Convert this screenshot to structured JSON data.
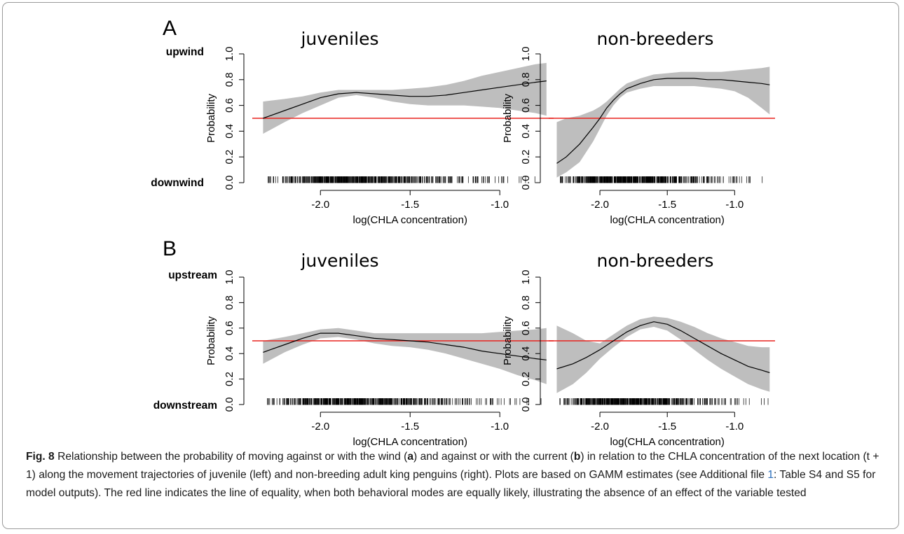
{
  "chart_data": [
    {
      "type": "line",
      "panel": "A",
      "title": "juveniles",
      "xlabel": "log(CHLA concentration)",
      "ylabel": "Probability",
      "top_label": "upwind",
      "bottom_label": "downwind",
      "xlim": [
        -2.38,
        -0.7
      ],
      "ylim": [
        0,
        1
      ],
      "xticks": [
        "-2.0",
        "-1.5",
        "-1.0"
      ],
      "xtick_values": [
        -2.0,
        -1.5,
        -1.0
      ],
      "yticks": [
        "0.0",
        "0.2",
        "0.4",
        "0.6",
        "0.8",
        "1.0"
      ],
      "ytick_values": [
        0,
        0.2,
        0.4,
        0.6,
        0.8,
        1.0
      ],
      "reference_line": 0.5,
      "reference_color": "#e8231f",
      "band_color": "#bebebe",
      "x": [
        -2.32,
        -2.2,
        -2.1,
        -2.0,
        -1.9,
        -1.8,
        -1.7,
        -1.6,
        -1.5,
        -1.4,
        -1.3,
        -1.2,
        -1.1,
        -1.0,
        -0.9,
        -0.8,
        -0.74
      ],
      "y": [
        0.5,
        0.56,
        0.61,
        0.66,
        0.69,
        0.7,
        0.69,
        0.68,
        0.67,
        0.67,
        0.68,
        0.7,
        0.72,
        0.74,
        0.76,
        0.78,
        0.79
      ],
      "lower": [
        0.38,
        0.47,
        0.54,
        0.6,
        0.66,
        0.68,
        0.66,
        0.63,
        0.61,
        0.6,
        0.6,
        0.6,
        0.59,
        0.58,
        0.56,
        0.54,
        0.52
      ],
      "upper": [
        0.63,
        0.65,
        0.67,
        0.7,
        0.72,
        0.72,
        0.72,
        0.72,
        0.73,
        0.74,
        0.76,
        0.79,
        0.83,
        0.86,
        0.89,
        0.92,
        0.93
      ],
      "rug_density": [
        [
          -2.3,
          0.1
        ],
        [
          -2.2,
          0.3
        ],
        [
          -2.1,
          0.6
        ],
        [
          -2.0,
          0.9
        ],
        [
          -1.9,
          1.0
        ],
        [
          -1.8,
          1.0
        ],
        [
          -1.7,
          0.95
        ],
        [
          -1.6,
          0.8
        ],
        [
          -1.5,
          0.6
        ],
        [
          -1.4,
          0.4
        ],
        [
          -1.3,
          0.3
        ],
        [
          -1.2,
          0.2
        ],
        [
          -1.1,
          0.15
        ],
        [
          -1.0,
          0.1
        ],
        [
          -0.9,
          0.07
        ],
        [
          -0.75,
          0.05
        ]
      ]
    },
    {
      "type": "line",
      "panel": "",
      "title": "non-breeders",
      "xlabel": "log(CHLA concentration)",
      "ylabel": "Probability",
      "top_label": "",
      "bottom_label": "",
      "xlim": [
        -2.38,
        -0.7
      ],
      "ylim": [
        0,
        1
      ],
      "xticks": [
        "-2.0",
        "-1.5",
        "-1.0"
      ],
      "xtick_values": [
        -2.0,
        -1.5,
        -1.0
      ],
      "yticks": [
        "0.0",
        "0.2",
        "0.4",
        "0.6",
        "0.8",
        "1.0"
      ],
      "ytick_values": [
        0,
        0.2,
        0.4,
        0.6,
        0.8,
        1.0
      ],
      "reference_line": 0.5,
      "reference_color": "#e8231f",
      "band_color": "#bebebe",
      "x": [
        -2.32,
        -2.25,
        -2.15,
        -2.05,
        -2.0,
        -1.95,
        -1.9,
        -1.85,
        -1.8,
        -1.7,
        -1.6,
        -1.5,
        -1.4,
        -1.3,
        -1.2,
        -1.1,
        -1.0,
        -0.9,
        -0.8,
        -0.74
      ],
      "y": [
        0.15,
        0.2,
        0.3,
        0.43,
        0.5,
        0.58,
        0.64,
        0.69,
        0.73,
        0.77,
        0.8,
        0.81,
        0.81,
        0.81,
        0.8,
        0.8,
        0.79,
        0.78,
        0.77,
        0.76
      ],
      "lower": [
        0.04,
        0.08,
        0.16,
        0.32,
        0.42,
        0.52,
        0.6,
        0.66,
        0.7,
        0.73,
        0.75,
        0.75,
        0.75,
        0.75,
        0.74,
        0.73,
        0.71,
        0.66,
        0.58,
        0.53
      ],
      "upper": [
        0.47,
        0.5,
        0.52,
        0.56,
        0.59,
        0.63,
        0.68,
        0.73,
        0.77,
        0.81,
        0.84,
        0.85,
        0.86,
        0.86,
        0.86,
        0.86,
        0.87,
        0.88,
        0.89,
        0.9
      ],
      "rug_density": [
        [
          -2.3,
          0.1
        ],
        [
          -2.2,
          0.3
        ],
        [
          -2.1,
          0.6
        ],
        [
          -2.0,
          0.9
        ],
        [
          -1.9,
          1.0
        ],
        [
          -1.8,
          1.0
        ],
        [
          -1.7,
          0.95
        ],
        [
          -1.6,
          0.8
        ],
        [
          -1.5,
          0.6
        ],
        [
          -1.4,
          0.4
        ],
        [
          -1.3,
          0.3
        ],
        [
          -1.2,
          0.2
        ],
        [
          -1.1,
          0.15
        ],
        [
          -1.0,
          0.1
        ],
        [
          -0.9,
          0.07
        ],
        [
          -0.75,
          0.05
        ]
      ]
    },
    {
      "type": "line",
      "panel": "B",
      "title": "juveniles",
      "xlabel": "log(CHLA concentration)",
      "ylabel": "Probability",
      "top_label": "upstream",
      "bottom_label": "downstream",
      "xlim": [
        -2.38,
        -0.7
      ],
      "ylim": [
        0,
        1
      ],
      "xticks": [
        "-2.0",
        "-1.5",
        "-1.0"
      ],
      "xtick_values": [
        -2.0,
        -1.5,
        -1.0
      ],
      "yticks": [
        "0.0",
        "0.2",
        "0.4",
        "0.6",
        "0.8",
        "1.0"
      ],
      "ytick_values": [
        0,
        0.2,
        0.4,
        0.6,
        0.8,
        1.0
      ],
      "reference_line": 0.5,
      "reference_color": "#e8231f",
      "band_color": "#bebebe",
      "x": [
        -2.32,
        -2.2,
        -2.1,
        -2.0,
        -1.9,
        -1.8,
        -1.7,
        -1.6,
        -1.5,
        -1.4,
        -1.3,
        -1.2,
        -1.1,
        -1.0,
        -0.9,
        -0.8,
        -0.74
      ],
      "y": [
        0.41,
        0.47,
        0.52,
        0.56,
        0.56,
        0.54,
        0.52,
        0.51,
        0.5,
        0.49,
        0.47,
        0.45,
        0.42,
        0.4,
        0.38,
        0.36,
        0.35
      ],
      "lower": [
        0.32,
        0.41,
        0.47,
        0.52,
        0.53,
        0.51,
        0.48,
        0.46,
        0.45,
        0.43,
        0.4,
        0.36,
        0.32,
        0.28,
        0.23,
        0.19,
        0.16
      ],
      "upper": [
        0.5,
        0.53,
        0.56,
        0.59,
        0.6,
        0.58,
        0.56,
        0.56,
        0.56,
        0.56,
        0.56,
        0.56,
        0.56,
        0.57,
        0.58,
        0.59,
        0.6
      ],
      "rug_density": [
        [
          -2.3,
          0.1
        ],
        [
          -2.2,
          0.3
        ],
        [
          -2.1,
          0.6
        ],
        [
          -2.0,
          0.9
        ],
        [
          -1.9,
          1.0
        ],
        [
          -1.8,
          1.0
        ],
        [
          -1.7,
          0.95
        ],
        [
          -1.6,
          0.8
        ],
        [
          -1.5,
          0.6
        ],
        [
          -1.4,
          0.4
        ],
        [
          -1.3,
          0.3
        ],
        [
          -1.2,
          0.2
        ],
        [
          -1.1,
          0.15
        ],
        [
          -1.0,
          0.1
        ],
        [
          -0.9,
          0.07
        ],
        [
          -0.75,
          0.05
        ]
      ]
    },
    {
      "type": "line",
      "panel": "",
      "title": "non-breeders",
      "xlabel": "log(CHLA concentration)",
      "ylabel": "Probability",
      "top_label": "",
      "bottom_label": "",
      "xlim": [
        -2.38,
        -0.7
      ],
      "ylim": [
        0,
        1
      ],
      "xticks": [
        "-2.0",
        "-1.5",
        "-1.0"
      ],
      "xtick_values": [
        -2.0,
        -1.5,
        -1.0
      ],
      "yticks": [
        "0.0",
        "0.2",
        "0.4",
        "0.6",
        "0.8",
        "1.0"
      ],
      "ytick_values": [
        0,
        0.2,
        0.4,
        0.6,
        0.8,
        1.0
      ],
      "reference_line": 0.5,
      "reference_color": "#e8231f",
      "band_color": "#bebebe",
      "x": [
        -2.32,
        -2.2,
        -2.1,
        -2.0,
        -1.9,
        -1.8,
        -1.7,
        -1.6,
        -1.5,
        -1.4,
        -1.3,
        -1.2,
        -1.1,
        -1.0,
        -0.9,
        -0.8,
        -0.74
      ],
      "y": [
        0.28,
        0.32,
        0.37,
        0.43,
        0.5,
        0.57,
        0.62,
        0.65,
        0.63,
        0.58,
        0.52,
        0.46,
        0.4,
        0.35,
        0.3,
        0.27,
        0.25
      ],
      "lower": [
        0.09,
        0.16,
        0.25,
        0.36,
        0.45,
        0.53,
        0.59,
        0.61,
        0.58,
        0.51,
        0.43,
        0.35,
        0.28,
        0.22,
        0.16,
        0.12,
        0.1
      ],
      "upper": [
        0.62,
        0.56,
        0.5,
        0.48,
        0.55,
        0.62,
        0.67,
        0.69,
        0.68,
        0.65,
        0.61,
        0.56,
        0.52,
        0.49,
        0.46,
        0.45,
        0.45
      ],
      "rug_density": [
        [
          -2.3,
          0.1
        ],
        [
          -2.2,
          0.3
        ],
        [
          -2.1,
          0.6
        ],
        [
          -2.0,
          0.9
        ],
        [
          -1.9,
          1.0
        ],
        [
          -1.8,
          1.0
        ],
        [
          -1.7,
          0.95
        ],
        [
          -1.6,
          0.8
        ],
        [
          -1.5,
          0.6
        ],
        [
          -1.4,
          0.4
        ],
        [
          -1.3,
          0.3
        ],
        [
          -1.2,
          0.2
        ],
        [
          -1.1,
          0.15
        ],
        [
          -1.0,
          0.1
        ],
        [
          -0.9,
          0.07
        ],
        [
          -0.75,
          0.05
        ]
      ]
    }
  ],
  "caption": {
    "fig_label": "Fig. 8",
    "part1": " Relationship between the probability of moving against or with the wind (",
    "a": "a",
    "part2": ") and against or with the current (",
    "b": "b",
    "part3": ") in relation to the CHLA concentration of the next location (t + 1) along the movement trajectories of juvenile (left) and non-breeding adult king penguins (right). Plots are based on GAMM estimates (see Additional file ",
    "link_text": "1",
    "part4": ": Table S4 and S5 for model outputs). The red line indicates the line of equality, when both behavioral modes are equally likely, illustrating the absence of an effect of the variable tested"
  }
}
